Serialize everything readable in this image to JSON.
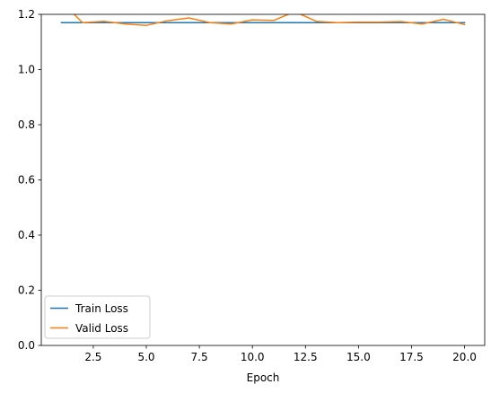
{
  "chart_data": {
    "type": "line",
    "title": "",
    "xlabel": "Epoch",
    "ylabel": "",
    "xlim": [
      0.05,
      20.95
    ],
    "ylim": [
      0,
      1.2
    ],
    "xticks": [
      2.5,
      5.0,
      7.5,
      10.0,
      12.5,
      15.0,
      17.5,
      20.0
    ],
    "xtick_labels": [
      "2.5",
      "5.0",
      "7.5",
      "10.0",
      "12.5",
      "15.0",
      "17.5",
      "20.0"
    ],
    "yticks": [
      0.0,
      0.2,
      0.4,
      0.6,
      0.8,
      1.0,
      1.2
    ],
    "ytick_labels": [
      "0.0",
      "0.2",
      "0.4",
      "0.6",
      "0.8",
      "1.0",
      "1.2"
    ],
    "grid": false,
    "legend_position": "lower-left",
    "x": [
      1,
      2,
      3,
      4,
      5,
      6,
      7,
      8,
      9,
      10,
      11,
      12,
      13,
      14,
      15,
      16,
      17,
      18,
      19,
      20
    ],
    "series": [
      {
        "name": "Train Loss",
        "color": "#1f77b4",
        "values": [
          1.17,
          1.17,
          1.17,
          1.17,
          1.17,
          1.17,
          1.17,
          1.17,
          1.17,
          1.17,
          1.17,
          1.17,
          1.17,
          1.17,
          1.17,
          1.17,
          1.17,
          1.17,
          1.17,
          1.17
        ]
      },
      {
        "name": "Valid Loss",
        "color": "#ff7f0e",
        "values": [
          1.245,
          1.17,
          1.175,
          1.165,
          1.16,
          1.177,
          1.187,
          1.17,
          1.165,
          1.18,
          1.178,
          1.21,
          1.175,
          1.17,
          1.172,
          1.172,
          1.174,
          1.165,
          1.182,
          1.163
        ]
      }
    ]
  }
}
